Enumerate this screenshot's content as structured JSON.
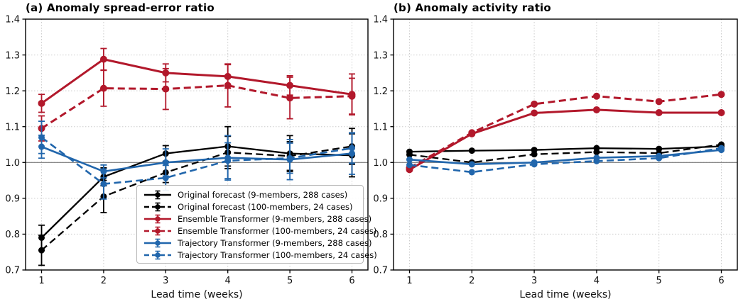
{
  "figure": {
    "xlabel": "Lead time (weeks)",
    "x_ticks": [
      "1",
      "2",
      "3",
      "4",
      "5",
      "6"
    ],
    "y_ticks": [
      "1.4",
      "1.3",
      "1.2",
      "1.1",
      "1.0",
      "0.9",
      "0.8",
      "0.7"
    ],
    "ylim": [
      0.7,
      1.4
    ],
    "reference_line": 1.0,
    "grid": "dotted"
  },
  "colors": {
    "black": "#000000",
    "red": "#b2182b",
    "blue": "#2166ac",
    "grid": "#cccccc",
    "reference": "#787878",
    "legend_border": "#b7b7b7"
  },
  "chart_data": [
    {
      "type": "line",
      "title": "(a) Anomaly spread-error ratio",
      "xlabel": "Lead time (weeks)",
      "x": [
        1,
        2,
        3,
        4,
        5,
        6
      ],
      "ylim": [
        0.7,
        1.4
      ],
      "legend_position": "lower center-right",
      "series": [
        {
          "name": "Original forecast (9-members, 288 cases)",
          "color": "#000000",
          "dash": false,
          "values": [
            0.79,
            0.96,
            1.025,
            1.045,
            1.025,
            1.02
          ],
          "err": [
            0.035,
            0.025,
            0.022,
            0.055,
            0.05,
            0.06
          ]
        },
        {
          "name": "Original forecast (100-members, 24 cases)",
          "color": "#000000",
          "dash": true,
          "values": [
            0.755,
            0.905,
            0.972,
            1.028,
            1.018,
            1.045
          ],
          "err": [
            0.042,
            0.045,
            0.028,
            0.045,
            0.04,
            0.05
          ]
        },
        {
          "name": "Ensemble Transformer (9-members, 288 cases)",
          "color": "#b2182b",
          "dash": false,
          "values": [
            1.165,
            1.288,
            1.25,
            1.24,
            1.215,
            1.19
          ],
          "err": [
            0.025,
            0.03,
            0.025,
            0.033,
            0.027,
            0.057
          ]
        },
        {
          "name": "Ensemble Transformer (100-members, 24 cases)",
          "color": "#b2182b",
          "dash": true,
          "values": [
            1.095,
            1.207,
            1.205,
            1.215,
            1.18,
            1.185
          ],
          "err": [
            0.035,
            0.05,
            0.057,
            0.06,
            0.058,
            0.05
          ]
        },
        {
          "name": "Trajectory Transformer (9-members, 288 cases)",
          "color": "#2166ac",
          "dash": false,
          "values": [
            1.044,
            0.975,
            1.0,
            1.013,
            1.008,
            1.025
          ],
          "err": [
            0.032,
            0.018,
            0.038,
            0.062,
            0.056,
            0.058
          ]
        },
        {
          "name": "Trajectory Transformer (100-members, 24 cases)",
          "color": "#2166ac",
          "dash": true,
          "values": [
            1.07,
            0.94,
            0.957,
            1.005,
            1.012,
            1.04
          ],
          "err": [
            0.045,
            0.042,
            0.035,
            0.05,
            0.042,
            0.042
          ]
        }
      ]
    },
    {
      "type": "line",
      "title": "(b) Anomaly activity ratio",
      "xlabel": "Lead time (weeks)",
      "x": [
        1,
        2,
        3,
        4,
        5,
        6
      ],
      "ylim": [
        0.7,
        1.4
      ],
      "series": [
        {
          "name": "Original forecast (9-members, 288 cases)",
          "color": "#000000",
          "dash": false,
          "values": [
            1.03,
            1.033,
            1.035,
            1.04,
            1.038,
            1.045
          ]
        },
        {
          "name": "Original forecast (100-members, 24 cases)",
          "color": "#000000",
          "dash": true,
          "values": [
            1.022,
            1.0,
            1.023,
            1.029,
            1.026,
            1.05
          ]
        },
        {
          "name": "Ensemble Transformer (9-members, 288 cases)",
          "color": "#b2182b",
          "dash": false,
          "values": [
            0.98,
            1.08,
            1.138,
            1.147,
            1.139,
            1.139
          ]
        },
        {
          "name": "Ensemble Transformer (100-members, 24 cases)",
          "color": "#b2182b",
          "dash": true,
          "values": [
            0.985,
            1.083,
            1.163,
            1.185,
            1.17,
            1.19
          ]
        },
        {
          "name": "Trajectory Transformer (9-members, 288 cases)",
          "color": "#2166ac",
          "dash": false,
          "values": [
            1.008,
            0.995,
            1.0,
            1.013,
            1.018,
            1.035
          ]
        },
        {
          "name": "Trajectory Transformer (100-members, 24 cases)",
          "color": "#2166ac",
          "dash": true,
          "values": [
            0.993,
            0.973,
            0.995,
            1.004,
            1.012,
            1.04
          ]
        }
      ]
    }
  ]
}
